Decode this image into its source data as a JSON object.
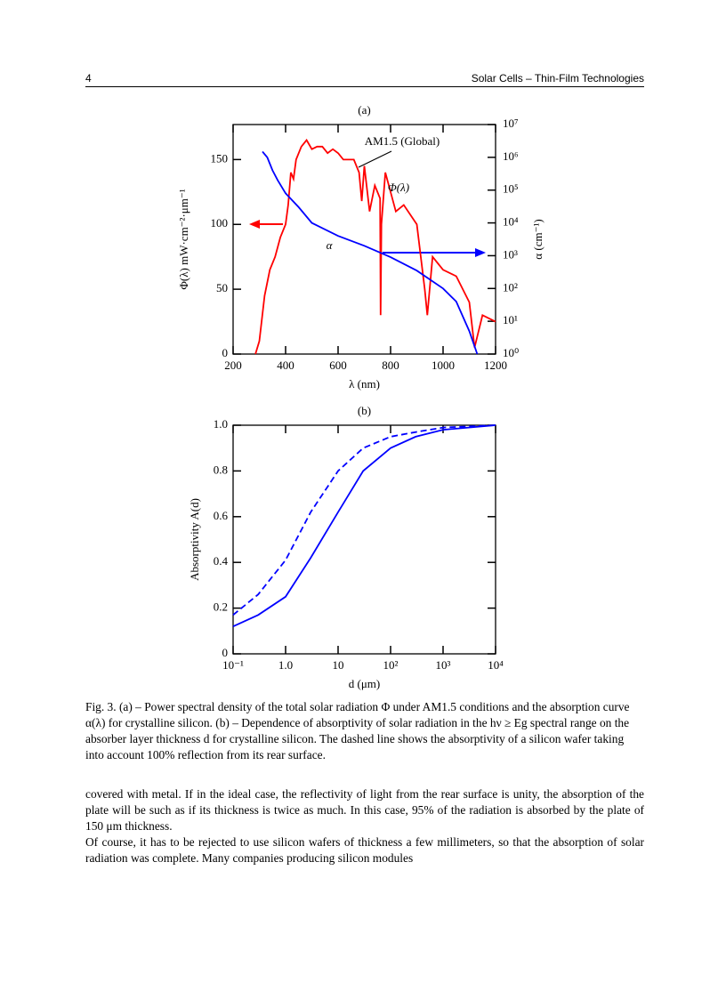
{
  "header": {
    "page_number": "4",
    "running_title": "Solar Cells – Thin-Film Technologies"
  },
  "chart_data": [
    {
      "type": "line",
      "title": "(a)",
      "xlabel": "λ (nm)",
      "ylabel": "Φ(λ) mW·cm⁻²·μm⁻¹",
      "y2label": "α (cm⁻¹)",
      "annotations": [
        "AM1.5 (Global)"
      ],
      "xlim": [
        200,
        1200
      ],
      "xticks": [
        200,
        400,
        600,
        800,
        1000,
        1200
      ],
      "ylim": [
        0,
        177
      ],
      "yticks": [
        0,
        50,
        100,
        150
      ],
      "y2lim": [
        1,
        10000000
      ],
      "y2scale": "log",
      "y2ticks": [
        {
          "value": 1,
          "label": "10⁰"
        },
        {
          "value": 10,
          "label": "10¹"
        },
        {
          "value": 100,
          "label": "10²"
        },
        {
          "value": 1000,
          "label": "10³"
        },
        {
          "value": 10000,
          "label": "10⁴"
        },
        {
          "value": 100000,
          "label": "10⁵"
        },
        {
          "value": 1000000,
          "label": "10⁶"
        },
        {
          "value": 10000000,
          "label": "10⁷"
        }
      ],
      "series": [
        {
          "name": "Φ(λ)",
          "color": "#ff0000",
          "x": [
            285,
            300,
            320,
            340,
            360,
            380,
            400,
            410,
            420,
            430,
            440,
            460,
            480,
            500,
            520,
            540,
            560,
            580,
            600,
            620,
            640,
            660,
            680,
            690,
            700,
            720,
            740,
            760,
            762,
            765,
            780,
            800,
            820,
            850,
            900,
            930,
            940,
            960,
            980,
            1000,
            1050,
            1100,
            1120,
            1150,
            1200
          ],
          "values": [
            0,
            10,
            45,
            65,
            75,
            90,
            100,
            115,
            140,
            135,
            150,
            160,
            165,
            158,
            160,
            160,
            155,
            158,
            155,
            150,
            150,
            150,
            140,
            118,
            145,
            110,
            130,
            120,
            30,
            100,
            140,
            125,
            110,
            115,
            100,
            50,
            30,
            75,
            70,
            65,
            60,
            40,
            5,
            30,
            25
          ]
        },
        {
          "name": "α",
          "color": "#0000ff",
          "axis": "y2",
          "x": [
            312,
            330,
            350,
            370,
            400,
            450,
            500,
            600,
            700,
            800,
            900,
            1000,
            1050,
            1100,
            1130
          ],
          "values": [
            1500000,
            1000000,
            400000,
            200000,
            80000,
            30000,
            10000,
            4000,
            2000,
            900,
            350,
            100,
            40,
            5,
            1
          ]
        }
      ]
    },
    {
      "type": "line",
      "title": "(b)",
      "xlabel": "d (μm)",
      "ylabel": "Absorptivity A(d)",
      "xscale": "log",
      "xlim": [
        0.1,
        10000
      ],
      "xticks": [
        {
          "value": 0.1,
          "label": "10⁻¹"
        },
        {
          "value": 1,
          "label": "1.0"
        },
        10,
        {
          "value": 100,
          "label": "10²"
        },
        {
          "value": 1000,
          "label": "10³"
        },
        {
          "value": 10000,
          "label": "10⁴"
        }
      ],
      "ylim": [
        0,
        1
      ],
      "yticks": [
        0,
        0.2,
        0.4,
        0.6,
        0.8,
        {
          "value": 1,
          "label": "1.0"
        }
      ],
      "series": [
        {
          "color": "#0000ff",
          "linestyle": "solid",
          "x": [
            0.1,
            0.3,
            1,
            3,
            10,
            30,
            100,
            300,
            1000,
            10000
          ],
          "values": [
            0.12,
            0.17,
            0.25,
            0.42,
            0.62,
            0.8,
            0.9,
            0.95,
            0.98,
            1.0
          ]
        },
        {
          "color": "#0000ff",
          "linestyle": "dashed",
          "x": [
            0.1,
            0.3,
            1,
            3,
            10,
            30,
            100,
            300,
            1000,
            10000
          ],
          "values": [
            0.17,
            0.26,
            0.41,
            0.62,
            0.8,
            0.9,
            0.95,
            0.97,
            0.99,
            1.0
          ]
        }
      ]
    }
  ],
  "caption": "Fig. 3. (a) – Power spectral density of the total solar radiation Φ under AM1.5 conditions and the absorption curve α(λ) for crystalline silicon. (b) – Dependence of absorptivity of solar radiation in the hν ≥ Eg spectral range on the absorber layer thickness d for crystalline silicon. The dashed line shows the absorptivity of a silicon wafer taking into account 100% reflection from its rear surface.",
  "body": [
    "covered with metal. If in the ideal case, the reflectivity of light from the rear surface is unity, the absorption of the plate will be such as if its thickness is twice as much. In this case, 95% of the radiation is absorbed by the plate of 150 μm thickness.",
    "Of course, it has to be rejected to use silicon wafers of thickness a few millimeters, so that the absorption of solar radiation was complete. Many companies producing silicon modules"
  ]
}
